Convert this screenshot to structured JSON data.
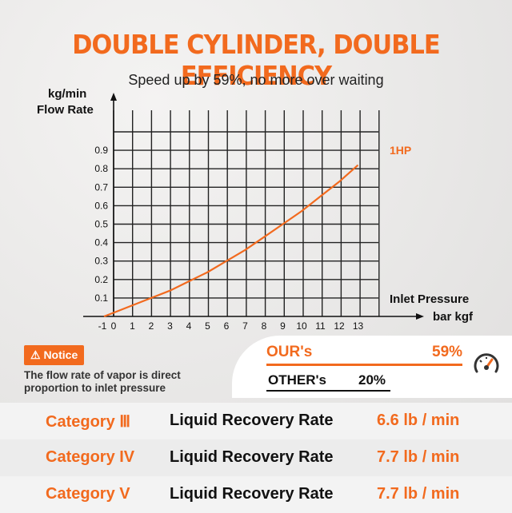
{
  "header": {
    "title": "DOUBLE CYLINDER, DOUBLE EFFICIENCY",
    "subtitle": "Speed up by 59%, no more over waiting"
  },
  "chart_data": {
    "type": "line",
    "ylabel_line1": "kg/min",
    "ylabel_line2": "Flow Rate",
    "xlabel_line1": "Inlet Pressure",
    "xlabel_line2": "bar kgf",
    "x_ticks": [
      "-1",
      "0",
      "1",
      "2",
      "3",
      "4",
      "5",
      "6",
      "7",
      "8",
      "9",
      "10",
      "11",
      "12",
      "13"
    ],
    "y_ticks": [
      "0.1",
      "0.2",
      "0.3",
      "0.4",
      "0.5",
      "0.6",
      "0.7",
      "0.8",
      "0.9"
    ],
    "xlim": [
      -1,
      13
    ],
    "ylim": [
      0,
      0.9
    ],
    "grid": true,
    "series": [
      {
        "name": "1HP",
        "color": "#f26a1e",
        "x": [
          -1,
          0,
          1,
          2,
          3,
          4,
          5,
          6,
          7,
          8,
          9,
          10,
          11,
          12,
          13
        ],
        "y": [
          0.0,
          0.02,
          0.06,
          0.1,
          0.14,
          0.19,
          0.24,
          0.3,
          0.36,
          0.43,
          0.5,
          0.57,
          0.65,
          0.73,
          0.82
        ]
      }
    ]
  },
  "notice": {
    "badge": "⚠ Notice",
    "text": "The flow rate of vapor is direct proportion to inlet pressure"
  },
  "comparison": {
    "ours_label": "OUR's",
    "ours_value": "59%",
    "others_label": "OTHER's",
    "others_value": "20%",
    "icon": "speedometer-icon"
  },
  "rates": [
    {
      "category": "Category Ⅲ",
      "label": "Liquid Recovery Rate",
      "value": "6.6 lb / min"
    },
    {
      "category": "Category IV",
      "label": "Liquid Recovery Rate",
      "value": "7.7 lb / min"
    },
    {
      "category": "Category V",
      "label": "Liquid Recovery Rate",
      "value": "7.7 lb / min"
    }
  ],
  "colors": {
    "accent": "#f26a1e",
    "row_alt": "#f3f3f3"
  }
}
